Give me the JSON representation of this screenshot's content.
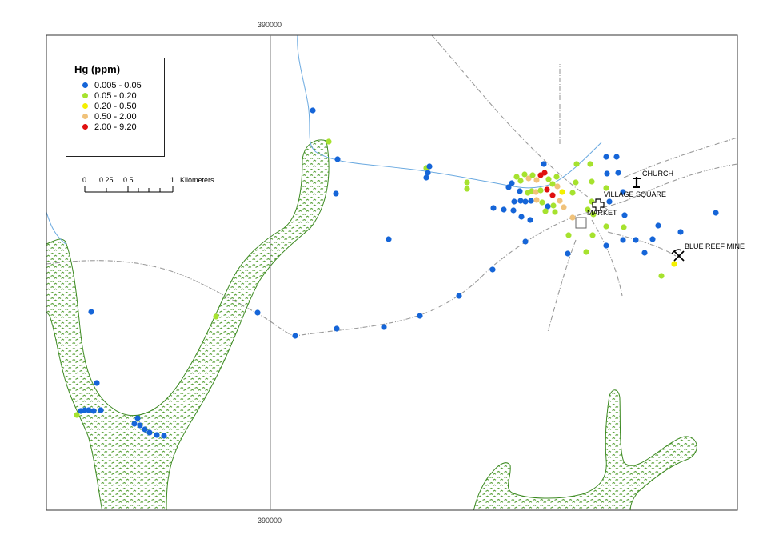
{
  "map": {
    "grid_label_top": "390000",
    "grid_label_bottom": "390000"
  },
  "legend": {
    "title": "Hg (ppm)",
    "classes": [
      {
        "label": "0.005 - 0.05",
        "color": "#1565d8"
      },
      {
        "label": "0.05 - 0.20",
        "color": "#a6e22e"
      },
      {
        "label": "0.20 - 0.50",
        "color": "#f4f000"
      },
      {
        "label": "0.50 - 2.00",
        "color": "#f0c27a"
      },
      {
        "label": "2.00 - 9.20",
        "color": "#e01010"
      }
    ]
  },
  "scalebar": {
    "ticks": [
      "0",
      "0.25",
      "0.5",
      "1"
    ],
    "unit": "Kilometers"
  },
  "places": [
    {
      "name": "CHURCH",
      "icon": "church-cross-icon"
    },
    {
      "name": "VILLAGE SQUARE",
      "icon": "village-square-icon"
    },
    {
      "name": "MARKET",
      "icon": "market-square-icon"
    },
    {
      "name": "BLUE REEF MINE",
      "icon": "mine-pickaxe-icon"
    }
  ],
  "colors": {
    "river": "#6aa9e0",
    "road": "#9a9a9a",
    "wetland_stroke": "#4a9a2a",
    "wetland_fill": "#6fb04a",
    "frame": "#333333"
  }
}
